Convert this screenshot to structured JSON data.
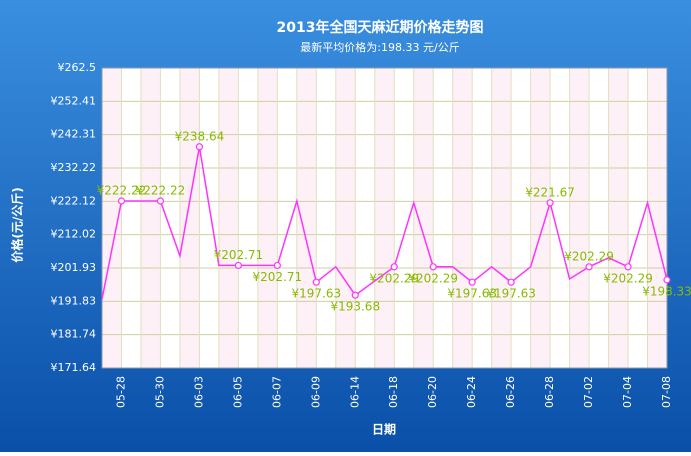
{
  "chart_data": {
    "type": "line",
    "title": "2013年全国天麻近期价格走势图",
    "subtitle": "最新平均价格为:198.33 元/公斤",
    "y_label": "价格(元/公斤)",
    "x_label": "日期",
    "categories": [
      null,
      "05-28",
      null,
      "05-30",
      null,
      "06-03",
      null,
      "06-05",
      null,
      "06-07",
      null,
      "06-09",
      null,
      "06-14",
      null,
      "06-18",
      null,
      "06-20",
      null,
      "06-24",
      null,
      "06-26",
      null,
      "06-28",
      null,
      "07-02",
      null,
      "07-04",
      null,
      "07-08"
    ],
    "series": [
      {
        "name": "价格",
        "color": "#ff33ff",
        "values": [
          192.5,
          222.22,
          222.22,
          222.22,
          205.6,
          238.64,
          202.71,
          202.71,
          202.71,
          202.71,
          222.22,
          197.63,
          202.29,
          193.68,
          198.0,
          202.29,
          221.67,
          202.29,
          202.29,
          197.63,
          202.29,
          197.63,
          202.29,
          221.67,
          198.6,
          202.29,
          205.0,
          202.29,
          221.67,
          198.33
        ],
        "value_labels": [
          null,
          "¥222.22",
          null,
          "¥222.22",
          null,
          "¥238.64",
          null,
          "¥202.71",
          null,
          "¥202.71",
          null,
          "¥197.63",
          null,
          "¥193.68",
          null,
          "¥202.29",
          null,
          "¥202.29",
          null,
          "¥197.63",
          null,
          "¥197.63",
          null,
          "¥221.67",
          null,
          "¥202.29",
          null,
          "¥202.29",
          null,
          "¥198.33"
        ]
      }
    ],
    "ylim": [
      171.64,
      262.5
    ],
    "yticks": [
      {
        "value": 171.64,
        "label": "¥171.64"
      },
      {
        "value": 181.74,
        "label": "¥181.74"
      },
      {
        "value": 191.83,
        "label": "¥191.83"
      },
      {
        "value": 201.93,
        "label": "¥201.93"
      },
      {
        "value": 212.02,
        "label": "¥212.02"
      },
      {
        "value": 222.12,
        "label": "¥222.12"
      },
      {
        "value": 232.22,
        "label": "¥232.22"
      },
      {
        "value": 242.31,
        "label": "¥242.31"
      },
      {
        "value": 252.41,
        "label": "¥252.41"
      },
      {
        "value": 262.5,
        "label": "¥262.5"
      }
    ],
    "grid": true
  }
}
